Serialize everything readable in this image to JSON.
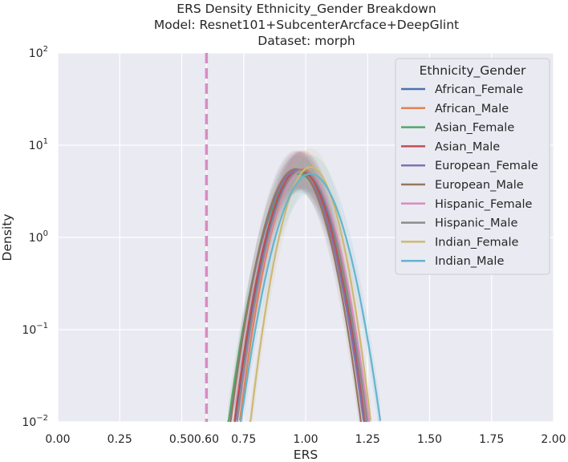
{
  "chart_data": {
    "type": "line",
    "title_lines": [
      "ERS Density Ethnicity_Gender Breakdown",
      "Model: Resnet101+SubcenterArcface+DeepGlint",
      "Dataset: morph"
    ],
    "xlabel": "ERS",
    "ylabel": "Density",
    "xlim": [
      0,
      2
    ],
    "ylim": [
      0.01,
      100
    ],
    "yscale": "log",
    "grid": true,
    "x_ticks": [
      "0.00",
      "0.25",
      "0.50",
      "0.60",
      "0.75",
      "1.00",
      "1.25",
      "1.50",
      "1.75",
      "2.00"
    ],
    "x_tick_values": [
      0,
      0.25,
      0.5,
      0.6,
      0.75,
      1.0,
      1.25,
      1.5,
      1.75,
      2.0
    ],
    "y_ticks": [
      {
        "base": "10",
        "exp": "−2",
        "value": 0.01
      },
      {
        "base": "10",
        "exp": "−1",
        "value": 0.1
      },
      {
        "base": "10",
        "exp": "0",
        "value": 1
      },
      {
        "base": "10",
        "exp": "1",
        "value": 10
      },
      {
        "base": "10",
        "exp": "2",
        "value": 100
      }
    ],
    "threshold": {
      "x": 0.6,
      "color": "#da8bc3",
      "style": "dashed"
    },
    "legend": {
      "title": "Ethnicity_Gender",
      "placement": "upper right"
    },
    "series": [
      {
        "name": "African_Female",
        "color": "#4c72b0",
        "mean": 0.98,
        "sd": 0.075,
        "peak": 5.2
      },
      {
        "name": "African_Male",
        "color": "#dd8452",
        "mean": 0.99,
        "sd": 0.072,
        "peak": 5.5
      },
      {
        "name": "Asian_Female",
        "color": "#55a868",
        "mean": 0.97,
        "sd": 0.08,
        "peak": 4.9
      },
      {
        "name": "Asian_Male",
        "color": "#c44e52",
        "mean": 0.975,
        "sd": 0.074,
        "peak": 5.4
      },
      {
        "name": "European_Female",
        "color": "#8172b3",
        "mean": 0.965,
        "sd": 0.076,
        "peak": 5.3
      },
      {
        "name": "European_Male",
        "color": "#937860",
        "mean": 0.96,
        "sd": 0.074,
        "peak": 5.5
      },
      {
        "name": "Hispanic_Female",
        "color": "#da8bc3",
        "mean": 0.99,
        "sd": 0.075,
        "peak": 5.3
      },
      {
        "name": "Hispanic_Male",
        "color": "#8c8c8c",
        "mean": 0.985,
        "sd": 0.074,
        "peak": 5.4
      },
      {
        "name": "Indian_Female",
        "color": "#ccb974",
        "mean": 1.02,
        "sd": 0.068,
        "peak": 5.8
      },
      {
        "name": "Indian_Male",
        "color": "#64b5cd",
        "mean": 1.02,
        "sd": 0.08,
        "peak": 4.9
      }
    ]
  }
}
